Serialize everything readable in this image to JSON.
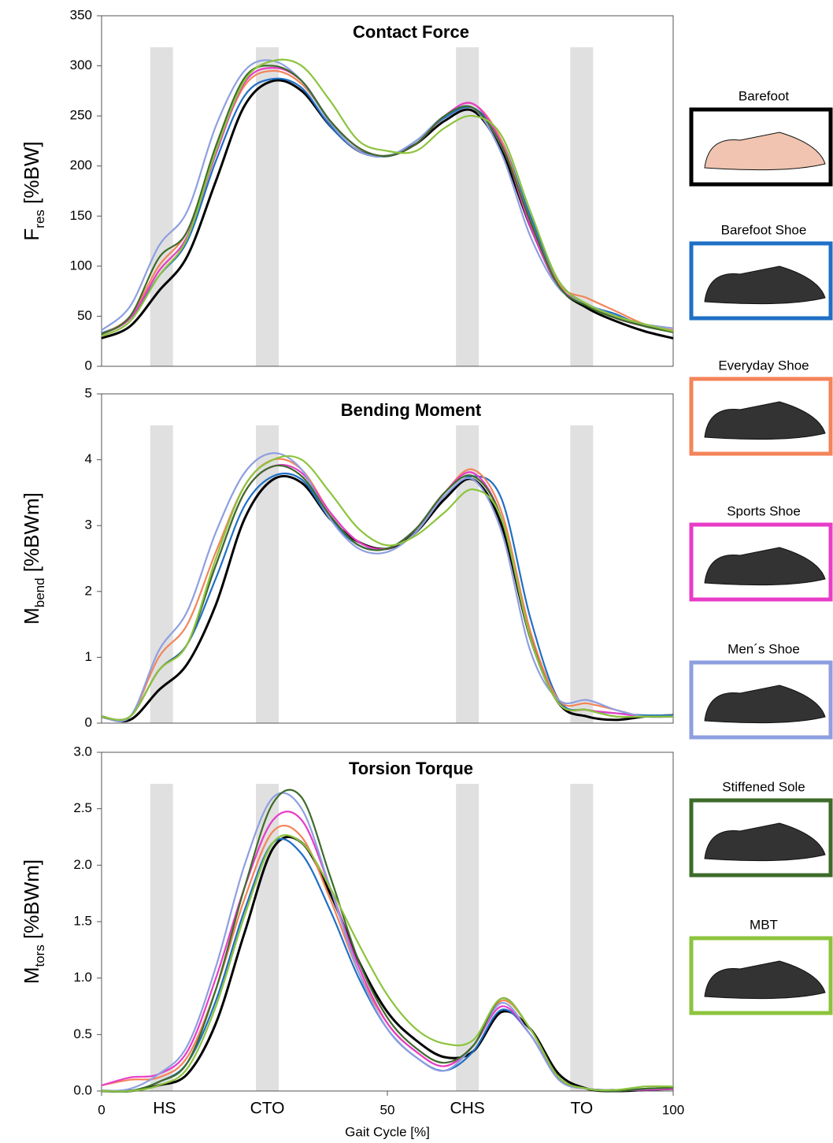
{
  "chart_data": [
    {
      "type": "line",
      "title": "Contact Force",
      "ylabel": {
        "main": "F",
        "sub": "res",
        "unit": " [%BW]"
      },
      "x": [
        0,
        5,
        10,
        15,
        20,
        25,
        30,
        35,
        40,
        45,
        50,
        55,
        60,
        65,
        70,
        75,
        80,
        85,
        90,
        95,
        100
      ],
      "xlim": [
        0,
        100
      ],
      "ylim": [
        0,
        350
      ],
      "yticks": [
        0,
        50,
        100,
        150,
        200,
        250,
        300,
        350
      ],
      "bands": [
        [
          8.5,
          12.5
        ],
        [
          27,
          31
        ],
        [
          62,
          66
        ],
        [
          82,
          86
        ]
      ],
      "series": [
        {
          "name": "Barefoot",
          "color": "#000000",
          "values": [
            28,
            40,
            75,
            110,
            185,
            260,
            285,
            275,
            240,
            215,
            210,
            222,
            245,
            255,
            215,
            140,
            80,
            58,
            45,
            35,
            28
          ]
        },
        {
          "name": "Barefoot Shoe",
          "color": "#1f6fc5",
          "values": [
            33,
            48,
            90,
            125,
            205,
            270,
            287,
            278,
            240,
            215,
            210,
            225,
            248,
            258,
            225,
            150,
            85,
            62,
            52,
            40,
            35
          ]
        },
        {
          "name": "Everyday Shoe",
          "color": "#f4845a",
          "values": [
            32,
            50,
            100,
            135,
            215,
            280,
            295,
            282,
            245,
            218,
            210,
            222,
            250,
            262,
            225,
            145,
            82,
            68,
            55,
            42,
            36
          ]
        },
        {
          "name": "Sports Shoe",
          "color": "#e83cc8",
          "values": [
            32,
            48,
            95,
            130,
            212,
            283,
            298,
            285,
            245,
            218,
            210,
            222,
            250,
            262,
            222,
            140,
            80,
            62,
            48,
            40,
            35
          ]
        },
        {
          "name": "Men´s Shoe",
          "color": "#8e9fe0",
          "values": [
            36,
            60,
            120,
            155,
            240,
            295,
            305,
            285,
            243,
            215,
            210,
            225,
            250,
            258,
            212,
            130,
            78,
            62,
            50,
            42,
            38
          ]
        },
        {
          "name": "Stiffened Sole",
          "color": "#3d6b2a",
          "values": [
            32,
            50,
            108,
            135,
            220,
            288,
            300,
            285,
            245,
            218,
            210,
            222,
            250,
            258,
            220,
            145,
            80,
            60,
            48,
            40,
            34
          ]
        },
        {
          "name": "MBT",
          "color": "#8cc43c",
          "values": [
            30,
            45,
            90,
            128,
            215,
            285,
            305,
            300,
            265,
            225,
            215,
            215,
            238,
            250,
            230,
            155,
            85,
            62,
            50,
            42,
            35
          ]
        }
      ]
    },
    {
      "type": "line",
      "title": "Bending Moment",
      "ylabel": {
        "main": "M",
        "sub": "bend",
        "unit": " [%BWm]"
      },
      "x": [
        0,
        5,
        10,
        15,
        20,
        25,
        30,
        35,
        40,
        45,
        50,
        55,
        60,
        65,
        70,
        75,
        80,
        85,
        90,
        95,
        100
      ],
      "xlim": [
        0,
        100
      ],
      "ylim": [
        0,
        5
      ],
      "yticks": [
        0,
        1,
        2,
        3,
        4,
        5
      ],
      "bands": [
        [
          8.5,
          12.5
        ],
        [
          27,
          31
        ],
        [
          62,
          66
        ],
        [
          82,
          86
        ]
      ],
      "series": [
        {
          "color": "#000000",
          "values": [
            0.1,
            0.05,
            0.5,
            0.9,
            1.8,
            3.1,
            3.7,
            3.65,
            3.1,
            2.75,
            2.65,
            2.9,
            3.4,
            3.7,
            3.0,
            1.3,
            0.3,
            0.1,
            0.05,
            0.1,
            0.12
          ]
        },
        {
          "color": "#1f6fc5",
          "values": [
            0.1,
            0.1,
            0.8,
            1.2,
            2.2,
            3.3,
            3.75,
            3.7,
            3.1,
            2.7,
            2.65,
            2.95,
            3.45,
            3.75,
            3.4,
            1.6,
            0.35,
            0.2,
            0.15,
            0.12,
            0.12
          ]
        },
        {
          "color": "#f4845a",
          "values": [
            0.1,
            0.1,
            1.0,
            1.5,
            2.6,
            3.6,
            4.0,
            3.85,
            3.2,
            2.75,
            2.65,
            2.95,
            3.5,
            3.85,
            3.2,
            1.4,
            0.35,
            0.3,
            0.2,
            0.1,
            0.1
          ]
        },
        {
          "color": "#e83cc8",
          "values": [
            0.1,
            0.1,
            0.8,
            1.2,
            2.4,
            3.5,
            3.9,
            3.8,
            3.2,
            2.75,
            2.65,
            2.95,
            3.5,
            3.8,
            3.1,
            1.3,
            0.3,
            0.2,
            0.15,
            0.1,
            0.1
          ]
        },
        {
          "color": "#8e9fe0",
          "values": [
            0.1,
            0.1,
            1.1,
            1.7,
            2.9,
            3.8,
            4.1,
            3.85,
            3.1,
            2.65,
            2.6,
            2.9,
            3.45,
            3.7,
            2.9,
            1.1,
            0.35,
            0.35,
            0.2,
            0.1,
            0.1
          ]
        },
        {
          "color": "#3d6b2a",
          "values": [
            0.1,
            0.1,
            0.8,
            1.2,
            2.4,
            3.5,
            3.9,
            3.75,
            3.15,
            2.7,
            2.65,
            2.95,
            3.5,
            3.75,
            3.1,
            1.3,
            0.3,
            0.2,
            0.1,
            0.1,
            0.1
          ]
        },
        {
          "color": "#8cc43c",
          "values": [
            0.1,
            0.1,
            0.8,
            1.2,
            2.5,
            3.6,
            4.0,
            4.0,
            3.5,
            2.95,
            2.7,
            2.85,
            3.2,
            3.55,
            3.1,
            1.3,
            0.3,
            0.2,
            0.1,
            0.1,
            0.1
          ]
        }
      ]
    },
    {
      "type": "line",
      "title": "Torsion Torque",
      "ylabel": {
        "main": "M",
        "sub": "tors",
        "unit": " [%BWm]"
      },
      "xlabel": "Gait Cycle [%]",
      "x": [
        0,
        5,
        10,
        15,
        20,
        25,
        30,
        35,
        40,
        45,
        50,
        55,
        60,
        65,
        70,
        75,
        80,
        85,
        90,
        95,
        100
      ],
      "xlim": [
        0,
        100
      ],
      "xticks": [
        0,
        50,
        100
      ],
      "events": [
        {
          "label": "HS",
          "x": 11
        },
        {
          "label": "CTO",
          "x": 29
        },
        {
          "label": "CHS",
          "x": 64
        },
        {
          "label": "TO",
          "x": 84
        }
      ],
      "ylim": [
        0,
        3
      ],
      "yticks": [
        {
          "value": 0,
          "label": "0.0"
        },
        {
          "value": 0.5,
          "label": "0.5"
        },
        {
          "value": 1,
          "label": "1.0"
        },
        {
          "value": 1.5,
          "label": "1.5"
        },
        {
          "value": 2,
          "label": "2.0"
        },
        {
          "value": 2.5,
          "label": "2.5"
        },
        {
          "value": 3,
          "label": "3.0"
        }
      ],
      "bands": [
        [
          8.5,
          12.5
        ],
        [
          27,
          31
        ],
        [
          62,
          66
        ],
        [
          82,
          86
        ]
      ],
      "series": [
        {
          "color": "#000000",
          "values": [
            0,
            0,
            0.05,
            0.15,
            0.6,
            1.4,
            2.15,
            2.2,
            1.75,
            1.15,
            0.7,
            0.45,
            0.3,
            0.35,
            0.7,
            0.55,
            0.15,
            0.02,
            0,
            0.01,
            0.02
          ]
        },
        {
          "color": "#1f6fc5",
          "values": [
            0,
            0,
            0.08,
            0.25,
            0.8,
            1.6,
            2.2,
            2.1,
            1.6,
            1.0,
            0.55,
            0.3,
            0.18,
            0.35,
            0.72,
            0.5,
            0.1,
            0.02,
            0.01,
            0.01,
            0.02
          ]
        },
        {
          "color": "#f4845a",
          "values": [
            0.05,
            0.1,
            0.12,
            0.3,
            0.9,
            1.7,
            2.3,
            2.25,
            1.7,
            1.05,
            0.6,
            0.35,
            0.22,
            0.4,
            0.8,
            0.55,
            0.12,
            0.02,
            0.01,
            0.02,
            0.03
          ]
        },
        {
          "color": "#e83cc8",
          "values": [
            0.05,
            0.12,
            0.15,
            0.35,
            1.0,
            1.8,
            2.4,
            2.4,
            1.8,
            1.1,
            0.6,
            0.35,
            0.22,
            0.4,
            0.75,
            0.5,
            0.1,
            0.02,
            0.01,
            0.01,
            0.02
          ]
        },
        {
          "color": "#8e9fe0",
          "values": [
            0,
            0.02,
            0.15,
            0.4,
            1.1,
            2.0,
            2.6,
            2.5,
            1.8,
            1.05,
            0.55,
            0.3,
            0.18,
            0.4,
            0.78,
            0.5,
            0.1,
            0.02,
            0.01,
            0.02,
            0.03
          ]
        },
        {
          "color": "#3d6b2a",
          "values": [
            0,
            0,
            0.08,
            0.25,
            0.9,
            1.8,
            2.55,
            2.6,
            1.9,
            1.15,
            0.65,
            0.38,
            0.25,
            0.4,
            0.82,
            0.55,
            0.12,
            0.02,
            0,
            0.02,
            0.03
          ]
        },
        {
          "color": "#8cc43c",
          "values": [
            0,
            0,
            0.05,
            0.2,
            0.75,
            1.55,
            2.2,
            2.2,
            1.8,
            1.3,
            0.85,
            0.55,
            0.42,
            0.45,
            0.82,
            0.55,
            0.12,
            0.02,
            0.01,
            0.04,
            0.04
          ]
        }
      ]
    }
  ]
}
